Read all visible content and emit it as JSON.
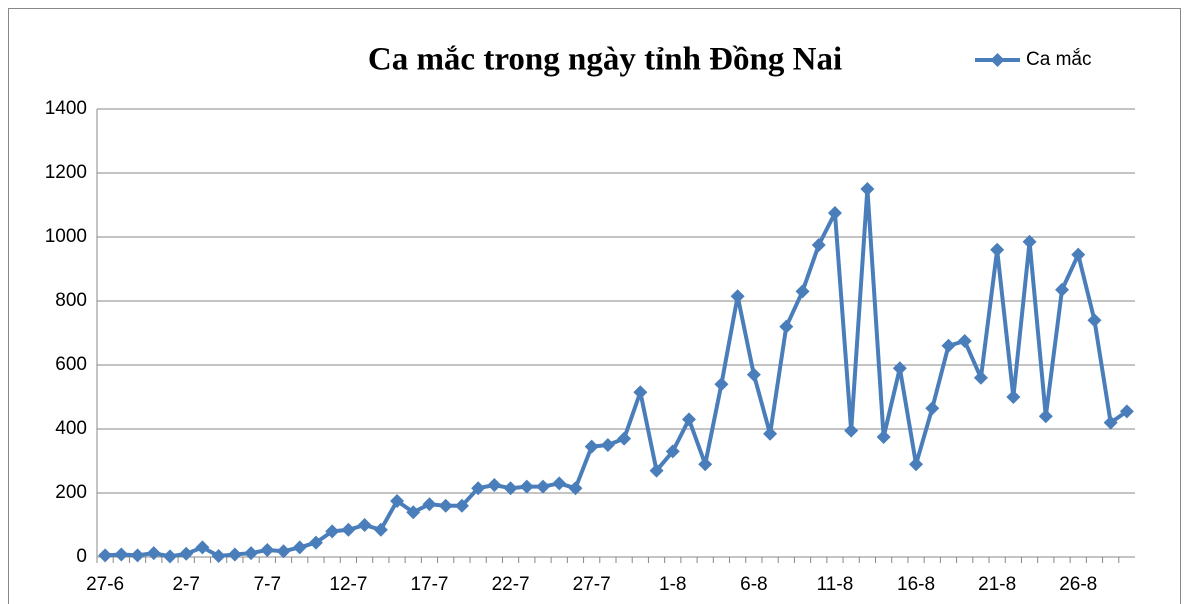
{
  "chart_data": {
    "type": "line",
    "title": "Ca mắc trong ngày tỉnh Đồng Nai",
    "categories": [
      "27-6",
      null,
      null,
      null,
      null,
      "2-7",
      null,
      null,
      null,
      null,
      "7-7",
      null,
      null,
      null,
      null,
      "12-7",
      null,
      null,
      null,
      null,
      "17-7",
      null,
      null,
      null,
      null,
      "22-7",
      null,
      null,
      null,
      null,
      "27-7",
      null,
      null,
      null,
      null,
      "1-8",
      null,
      null,
      null,
      null,
      "6-8",
      null,
      null,
      null,
      null,
      "11-8",
      null,
      null,
      null,
      null,
      "16-8",
      null,
      null,
      null,
      null,
      "21-8",
      null,
      null,
      null,
      null,
      "26-8",
      null,
      null,
      null
    ],
    "series": [
      {
        "name": "Ca mắc",
        "color": "#4a7ebb",
        "values": [
          5,
          8,
          5,
          12,
          2,
          10,
          30,
          3,
          8,
          12,
          22,
          18,
          30,
          45,
          80,
          85,
          100,
          85,
          175,
          140,
          165,
          160,
          160,
          215,
          225,
          215,
          220,
          220,
          230,
          215,
          345,
          350,
          370,
          515,
          270,
          330,
          430,
          290,
          540,
          815,
          570,
          385,
          720,
          830,
          975,
          1075,
          395,
          1150,
          375,
          590,
          290,
          465,
          660,
          675,
          560,
          960,
          500,
          985,
          440,
          835,
          945,
          740,
          420,
          455
        ]
      }
    ],
    "ylim": [
      0,
      1400
    ],
    "yticks": [
      0,
      200,
      400,
      600,
      800,
      1000,
      1200,
      1400
    ],
    "grid": true,
    "legend": "top-right"
  }
}
